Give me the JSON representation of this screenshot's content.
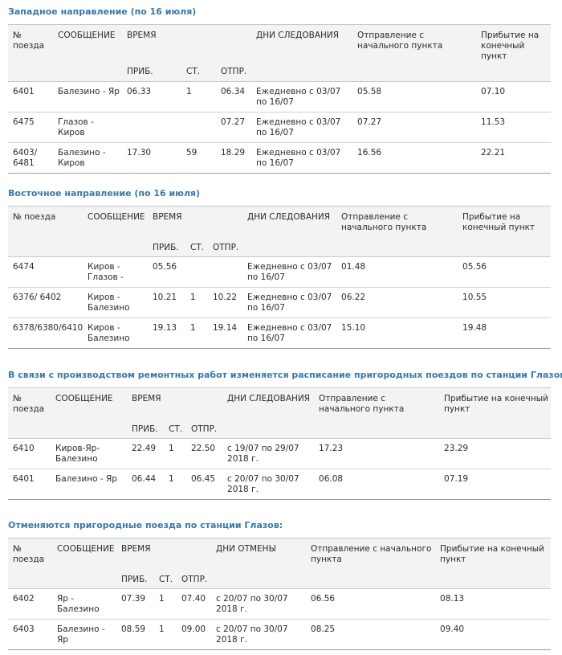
{
  "sections": [
    {
      "title": "Западное направление (по 16 июля)",
      "headers": {
        "train": "№ поезда",
        "route": "СООБЩЕНИЕ",
        "time": "ВРЕМЯ",
        "days": "ДНИ СЛЕДОВАНИЯ",
        "dep": "Отправление с начального пункта",
        "arr": "Прибытие на конечный пункт",
        "arrival": "ПРИБ.",
        "stop": "СТ.",
        "departure": "ОТПР."
      },
      "rows": [
        {
          "train": "6401",
          "route": "Балезино - Яр",
          "arrival": "06.33",
          "stop": "1",
          "departure": "06.34",
          "days": "Ежедневно с 03/07 по 16/07",
          "dep": "05.58",
          "arr": "07.10"
        },
        {
          "train": "6475",
          "route": "Глазов - Киров",
          "arrival": "",
          "stop": "",
          "departure": "07.27",
          "days": "Ежедневно с 03/07 по 16/07",
          "dep": "07.27",
          "arr": "11.53"
        },
        {
          "train": "6403/ 6481",
          "route": "Балезино - Киров",
          "arrival": "17.30",
          "stop": "59",
          "departure": "18.29",
          "days": "Ежедневно с 03/07 по 16/07",
          "dep": "16.56",
          "arr": "22.21"
        }
      ]
    },
    {
      "title": "Восточное направление (по 16 июля)",
      "headers": {
        "train": "№ поезда",
        "route": "СООБЩЕНИЕ",
        "time": "ВРЕМЯ",
        "days": "ДНИ СЛЕДОВАНИЯ",
        "dep": "Отправление с начального пункта",
        "arr": "Прибытие на конечный пункт",
        "arrival": "ПРИБ.",
        "stop": "СТ.",
        "departure": "ОТПР."
      },
      "rows": [
        {
          "train": "6474",
          "route": "Киров - Глазов -",
          "arrival": "05.56",
          "stop": "",
          "departure": "",
          "days": "Ежедневно с 03/07 по 16/07",
          "dep": "01.48",
          "arr": "05.56"
        },
        {
          "train": "6376/ 6402",
          "route": "Киров - Балезино",
          "arrival": "10.21",
          "stop": "1",
          "departure": "10.22",
          "days": "Ежедневно с 03/07 по 16/07",
          "dep": "06.22",
          "arr": "10.55"
        },
        {
          "train": "6378/6380/6410",
          "route": "Киров - Балезино",
          "arrival": "19.13",
          "stop": "1",
          "departure": "19.14",
          "days": "Ежедневно с 03/07 по 16/07",
          "dep": "15.10",
          "arr": "19.48"
        }
      ]
    },
    {
      "title": "В связи с производством ремонтных работ изменяется расписание пригородных поездов по станции Глазов:",
      "headers": {
        "train": "№ поезда",
        "route": "СООБЩЕНИЕ",
        "time": "ВРЕМЯ",
        "days": "ДНИ СЛЕДОВАНИЯ",
        "dep": "Отправление с начального пункта",
        "arr": "Прибытие на конечный пункт",
        "arrival": "ПРИБ.",
        "stop": "СТ.",
        "departure": "ОТПР."
      },
      "rows": [
        {
          "train": "6410",
          "route": "Киров-Яр-Балезино",
          "arrival": "22.49",
          "stop": "1",
          "departure": "22.50",
          "days": "с 19/07 по 29/07 2018 г.",
          "dep": "17.23",
          "arr": "23.29"
        },
        {
          "train": "6401",
          "route": "Балезино - Яр",
          "arrival": "06.44",
          "stop": "1",
          "departure": "06.45",
          "days": "с 20/07 по 30/07 2018 г.",
          "dep": "06.08",
          "arr": "07.19"
        }
      ]
    },
    {
      "title": "Отменяются пригородные поезда по станции Глазов:",
      "headers": {
        "train": "№ поезда",
        "route": "СООБЩЕНИЕ",
        "time": "ВРЕМЯ",
        "days": "ДНИ ОТМЕНЫ",
        "dep": "Отправление с начального пункта",
        "arr": "Прибытие на конечный пункт",
        "arrival": "ПРИБ.",
        "stop": "СТ.",
        "departure": "ОТПР."
      },
      "rows": [
        {
          "train": "6402",
          "route": "Яр - Балезино",
          "arrival": "07.39",
          "stop": "1",
          "departure": "07.40",
          "days": "с 20/07 по 30/07 2018 г.",
          "dep": "06.56",
          "arr": "08.13"
        },
        {
          "train": "6403",
          "route": "Балезино - Яр",
          "arrival": "08.59",
          "stop": "1",
          "departure": "09.00",
          "days": "с 20/07 по 30/07 2018 г.",
          "dep": "08.25",
          "arr": "09.40"
        }
      ]
    }
  ]
}
